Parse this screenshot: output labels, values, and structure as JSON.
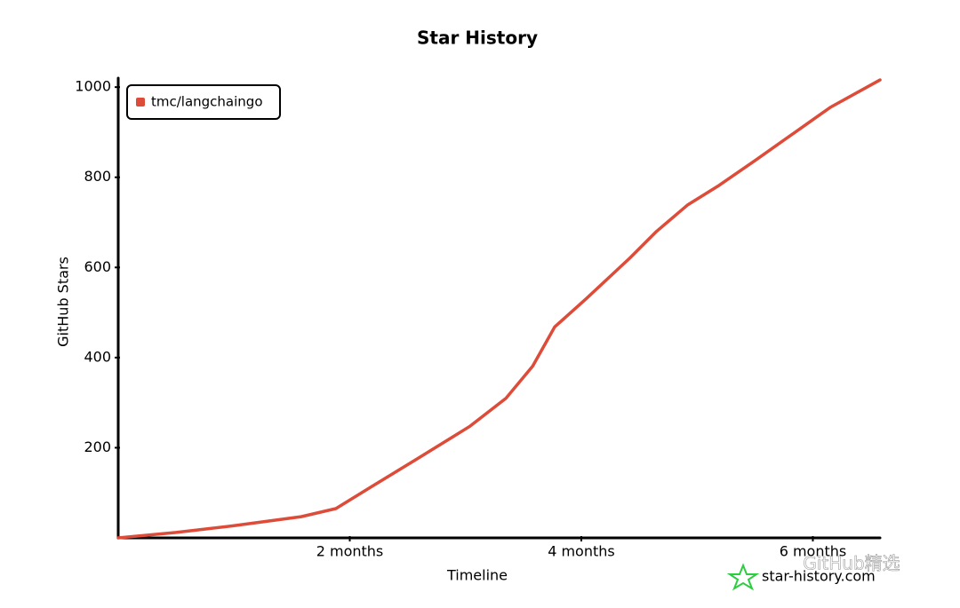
{
  "chart_data": {
    "type": "line",
    "title": "Star History",
    "x_label": "Timeline",
    "y_label": "GitHub Stars",
    "x": [
      0,
      0.5,
      1.0,
      1.58,
      1.88,
      2.19,
      2.58,
      3.04,
      3.35,
      3.58,
      3.77,
      4.04,
      4.42,
      4.65,
      4.92,
      5.19,
      5.5,
      5.88,
      6.15,
      6.58
    ],
    "series": [
      {
        "name": "tmc/langchaingo",
        "color": "#dd4b39",
        "values": [
          0,
          12,
          27,
          47,
          65,
          114,
          175,
          248,
          310,
          381,
          468,
          530,
          621,
          680,
          739,
          782,
          837,
          906,
          955,
          1016
        ]
      }
    ],
    "xlim": [
      0,
      6.58
    ],
    "ylim": [
      0,
      1020
    ],
    "xticks": [
      {
        "value": 2,
        "label": "2 months"
      },
      {
        "value": 4,
        "label": "4 months"
      },
      {
        "value": 6,
        "label": "6 months"
      }
    ],
    "yticks": [
      200,
      400,
      600,
      800,
      1000
    ],
    "legend": "top-left",
    "watermark": "star-history.com",
    "overlay_text": "GitHub精选"
  }
}
